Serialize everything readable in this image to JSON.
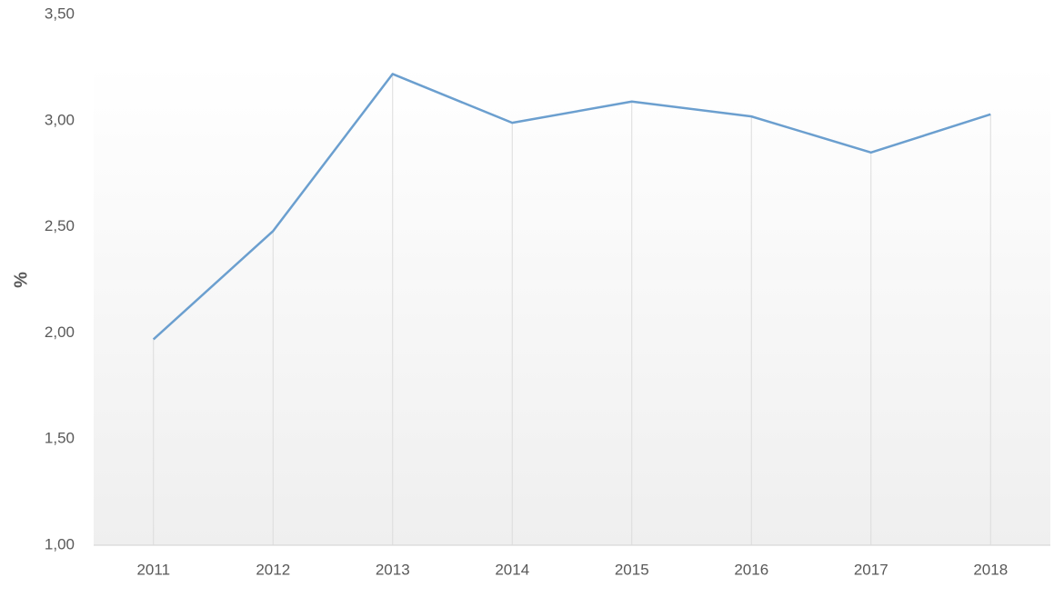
{
  "chart_data": {
    "type": "line",
    "y_label": "%",
    "categories": [
      "2011",
      "2012",
      "2013",
      "2014",
      "2015",
      "2016",
      "2017",
      "2018"
    ],
    "series": [
      {
        "name": "%",
        "color": "#6b9fcf",
        "values": [
          1.97,
          2.48,
          3.22,
          2.99,
          3.09,
          3.02,
          2.85,
          3.03
        ]
      }
    ],
    "ylim": [
      1.0,
      3.5
    ],
    "yticks": [
      {
        "value": 1.0,
        "label": "1,00"
      },
      {
        "value": 1.5,
        "label": "1,50"
      },
      {
        "value": 2.0,
        "label": "2,00"
      },
      {
        "value": 2.5,
        "label": "2,50"
      },
      {
        "value": 3.0,
        "label": "3,00"
      },
      {
        "value": 3.5,
        "label": "3,50"
      }
    ],
    "drop_lines": true
  }
}
